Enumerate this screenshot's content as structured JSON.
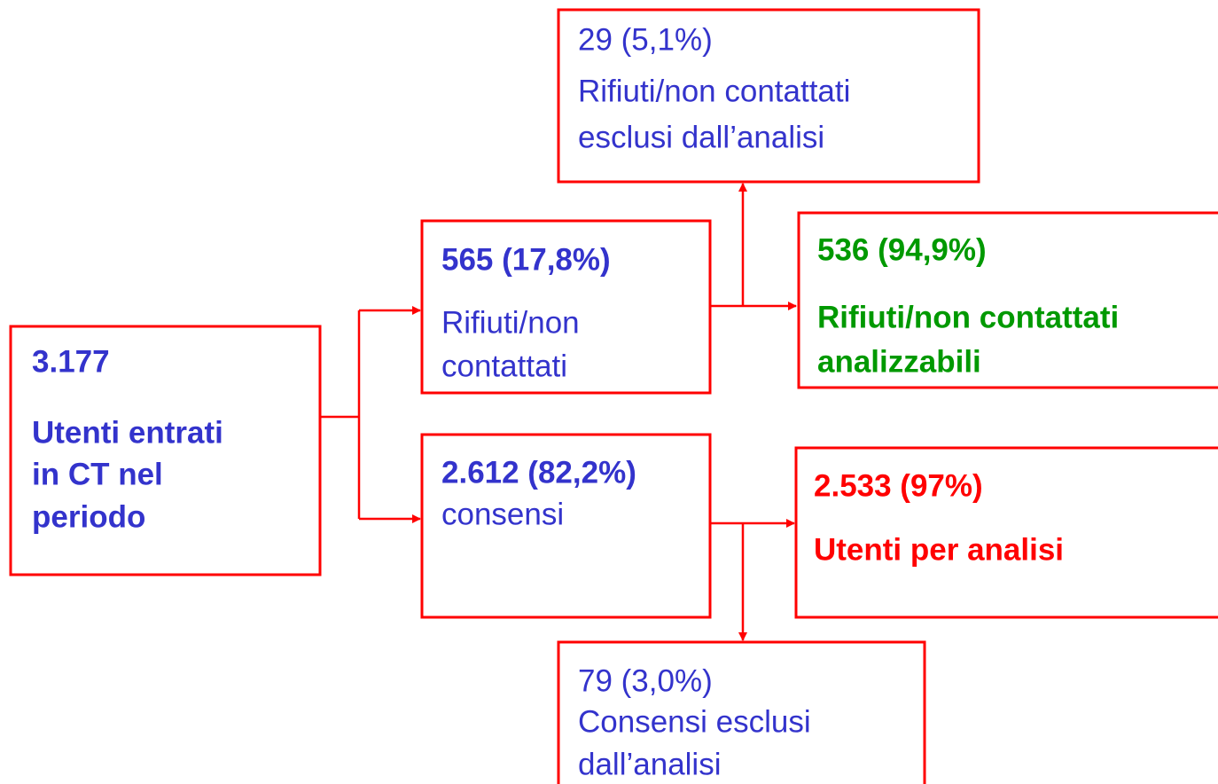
{
  "nodes": [
    {
      "lines": [
        "3.177",
        "Utenti entrati",
        "in CT nel",
        "periodo"
      ]
    },
    {
      "lines": [
        "565 (17,8%)",
        "Rifiuti/non",
        "contattati"
      ]
    },
    {
      "lines": [
        "29 (5,1%)",
        "Rifiuti/non contattati",
        "esclusi dall’analisi"
      ]
    },
    {
      "lines": [
        "536 (94,9%)",
        "Rifiuti/non contattati",
        "analizzabili"
      ]
    },
    {
      "lines": [
        "2.612 (82,2%)",
        "consensi"
      ]
    },
    {
      "lines": [
        "2.533 (97%)",
        "Utenti per analisi"
      ]
    },
    {
      "lines": [
        "79 (3,0%)",
        "Consensi esclusi",
        "dall’analisi"
      ]
    }
  ]
}
